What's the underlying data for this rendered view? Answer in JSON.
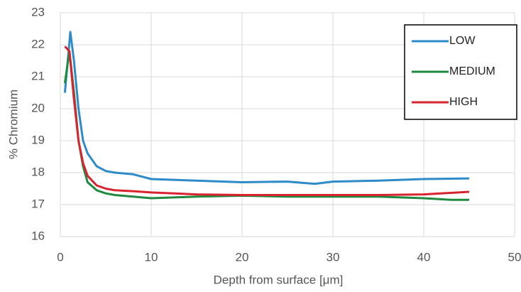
{
  "chart_data": {
    "type": "line",
    "xlabel": "Depth from surface [μm]",
    "ylabel": "% Chromium",
    "xlim": [
      0,
      50
    ],
    "xticks": [
      0,
      10,
      20,
      30,
      40,
      50
    ],
    "ylim": [
      16,
      23
    ],
    "yticks": [
      16,
      17,
      18,
      19,
      20,
      21,
      22,
      23
    ],
    "grid": true,
    "legend": "upper right",
    "series": [
      {
        "name": "LOW",
        "color": "#2e8bc9",
        "x": [
          0.5,
          1.1,
          1.5,
          2,
          2.5,
          3,
          4,
          5,
          6,
          8,
          10,
          15,
          20,
          25,
          28,
          30,
          35,
          40,
          45
        ],
        "values": [
          20.5,
          22.4,
          21.5,
          20,
          19,
          18.6,
          18.2,
          18.05,
          18,
          17.95,
          17.8,
          17.75,
          17.7,
          17.72,
          17.65,
          17.72,
          17.75,
          17.8,
          17.82
        ]
      },
      {
        "name": "MEDIUM",
        "color": "#1f8a3f",
        "x": [
          0.5,
          1,
          1.5,
          2,
          2.5,
          3,
          4,
          5,
          6,
          8,
          10,
          15,
          20,
          25,
          30,
          35,
          40,
          43,
          45
        ],
        "values": [
          20.8,
          21.8,
          20.5,
          19,
          18.2,
          17.7,
          17.45,
          17.35,
          17.3,
          17.25,
          17.2,
          17.25,
          17.28,
          17.25,
          17.25,
          17.25,
          17.2,
          17.15,
          17.15
        ]
      },
      {
        "name": "HIGH",
        "color": "#d9232e",
        "x": [
          0.5,
          1,
          1.5,
          2,
          2.5,
          3,
          4,
          5,
          6,
          8,
          10,
          15,
          20,
          25,
          30,
          35,
          40,
          45
        ],
        "values": [
          21.95,
          21.8,
          20.3,
          19,
          18.3,
          17.9,
          17.6,
          17.5,
          17.45,
          17.42,
          17.38,
          17.32,
          17.3,
          17.3,
          17.3,
          17.3,
          17.32,
          17.4
        ]
      }
    ]
  }
}
